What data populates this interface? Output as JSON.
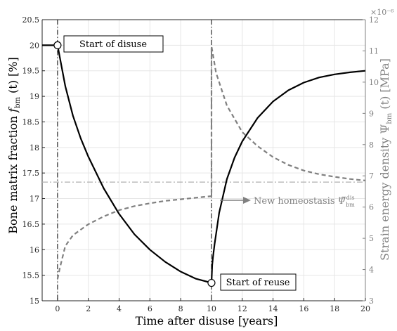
{
  "chart_data": {
    "type": "line",
    "xlabel": "Time after disuse [years]",
    "ylabel_left": "Bone matrix fraction f_bm (t) [%]",
    "ylabel_right": "Strain energy density Ψ_bm (t) [MPa]",
    "right_exponent": "×10⁻⁶",
    "xlim": [
      -1,
      20
    ],
    "ylim_left": [
      15,
      20.5
    ],
    "ylim_right": [
      3,
      12
    ],
    "x_ticks": [
      0,
      2,
      4,
      6,
      8,
      10,
      12,
      14,
      16,
      18,
      20
    ],
    "y_ticks_left": [
      "15",
      "15.5",
      "16",
      "16.5",
      "17",
      "17.5",
      "18",
      "18.5",
      "19",
      "19.5",
      "20",
      "20.5"
    ],
    "y_ticks_right": [
      3,
      4,
      5,
      6,
      7,
      8,
      9,
      10,
      11,
      12
    ],
    "grid": true,
    "colors": {
      "left_series": "#000000",
      "right_series": "#808080",
      "grid": "#e6e6e6"
    },
    "series": [
      {
        "axis": "left",
        "style": "solid",
        "x": [
          -1,
          0,
          0.5,
          1,
          1.5,
          2,
          3,
          4,
          5,
          6,
          7,
          8,
          9,
          10,
          10.05,
          10.1,
          10.2,
          10.5,
          11,
          11.5,
          12,
          13,
          14,
          15,
          16,
          17,
          18,
          19,
          20
        ],
        "y": [
          20,
          20,
          19.2,
          18.62,
          18.18,
          17.82,
          17.2,
          16.7,
          16.3,
          16.0,
          15.76,
          15.57,
          15.43,
          15.35,
          15.7,
          15.85,
          16.1,
          16.72,
          17.38,
          17.8,
          18.12,
          18.58,
          18.9,
          19.12,
          19.27,
          19.37,
          19.43,
          19.47,
          19.5
        ]
      },
      {
        "axis": "right",
        "style": "dashed",
        "x": [
          0,
          0.15,
          0.5,
          1,
          2,
          3,
          4,
          5,
          6,
          7,
          8,
          9,
          10,
          10,
          10.3,
          10.6,
          11,
          12,
          13,
          14,
          15,
          16,
          17,
          18,
          19,
          20
        ],
        "y": [
          3.7,
          4.05,
          4.75,
          5.1,
          5.45,
          5.7,
          5.9,
          6.03,
          6.12,
          6.2,
          6.25,
          6.3,
          6.35,
          11.15,
          10.3,
          9.85,
          9.25,
          8.4,
          7.95,
          7.6,
          7.35,
          7.17,
          7.05,
          6.97,
          6.9,
          6.85
        ]
      }
    ],
    "vertical_lines_x": [
      0,
      10
    ],
    "homeostasis_level_right": 6.8,
    "markers": [
      {
        "x": 0,
        "y": 20,
        "label": "Start of disuse"
      },
      {
        "x": 10,
        "y": 15.35,
        "label": "Start of reuse"
      }
    ],
    "annotation": {
      "label": "New homeostasis",
      "symbol": "Ψ̌",
      "subscript": "bm",
      "superscript": "dis"
    }
  }
}
